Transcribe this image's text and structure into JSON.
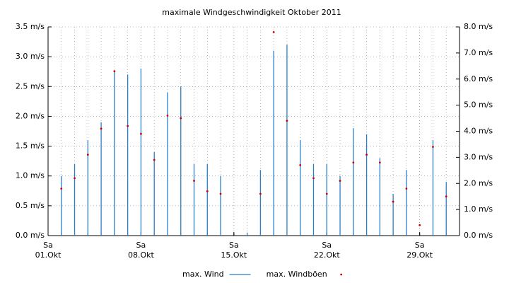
{
  "chart_data": {
    "type": "bar",
    "title": "maximale Windgeschwindigkeit Oktober 2011",
    "x": [
      2,
      3,
      4,
      5,
      6,
      7,
      8,
      9,
      10,
      11,
      12,
      13,
      14,
      15,
      16,
      17,
      18,
      19,
      20,
      21,
      22,
      23,
      24,
      25,
      26,
      27,
      28,
      29,
      30,
      31
    ],
    "xlim": [
      1,
      32
    ],
    "xticks": [
      {
        "value": 1,
        "label": "01.Okt",
        "weekday": "Sa"
      },
      {
        "value": 8,
        "label": "08.Okt",
        "weekday": "Sa"
      },
      {
        "value": 15,
        "label": "15.Okt",
        "weekday": "Sa"
      },
      {
        "value": 22,
        "label": "22.Okt",
        "weekday": "Sa"
      },
      {
        "value": 29,
        "label": "29.Okt",
        "weekday": "Sa"
      }
    ],
    "ylim": [
      0,
      3.5
    ],
    "yticks": [
      {
        "value": 0,
        "label": "0.0 m/s"
      },
      {
        "value": 0.5,
        "label": "0.5 m/s"
      },
      {
        "value": 1,
        "label": "1.0 m/s"
      },
      {
        "value": 1.5,
        "label": "1.5 m/s"
      },
      {
        "value": 2,
        "label": "2.0 m/s"
      },
      {
        "value": 2.5,
        "label": "2.5 m/s"
      },
      {
        "value": 3,
        "label": "3.0 m/s"
      },
      {
        "value": 3.5,
        "label": "3.5 m/s"
      }
    ],
    "y2lim": [
      0,
      8
    ],
    "y2ticks": [
      {
        "value": 0,
        "label": "0.0 m/s"
      },
      {
        "value": 1,
        "label": "1.0 m/s"
      },
      {
        "value": 2,
        "label": "2.0 m/s"
      },
      {
        "value": 3,
        "label": "3.0 m/s"
      },
      {
        "value": 4,
        "label": "4.0 m/s"
      },
      {
        "value": 5,
        "label": "5.0 m/s"
      },
      {
        "value": 6,
        "label": "6.0 m/s"
      },
      {
        "value": 7,
        "label": "7.0 m/s"
      },
      {
        "value": 8,
        "label": "8.0 m/s"
      }
    ],
    "grid": true,
    "legend": "bottom",
    "series": [
      {
        "name": "max. Wind",
        "color": "#2a7fc8",
        "mark": "bar",
        "values": [
          1.0,
          1.2,
          1.6,
          1.9,
          2.75,
          2.7,
          2.8,
          1.4,
          2.4,
          2.5,
          1.2,
          1.2,
          1.0,
          null,
          0.05,
          1.1,
          3.1,
          3.2,
          1.6,
          1.2,
          1.2,
          1.0,
          1.8,
          1.7,
          1.3,
          0.7,
          1.1,
          null,
          1.6,
          0.9
        ]
      },
      {
        "name": "max. Windböen",
        "color": "#d00000",
        "mark": "dot",
        "axis": "y2",
        "values": [
          1.8,
          2.2,
          3.1,
          4.1,
          6.3,
          4.2,
          3.9,
          2.9,
          4.6,
          4.5,
          2.1,
          1.7,
          1.6,
          null,
          null,
          1.6,
          7.8,
          4.4,
          2.7,
          2.2,
          1.6,
          2.1,
          2.8,
          3.1,
          2.8,
          1.3,
          1.8,
          0.4,
          3.4,
          1.5
        ]
      }
    ]
  }
}
